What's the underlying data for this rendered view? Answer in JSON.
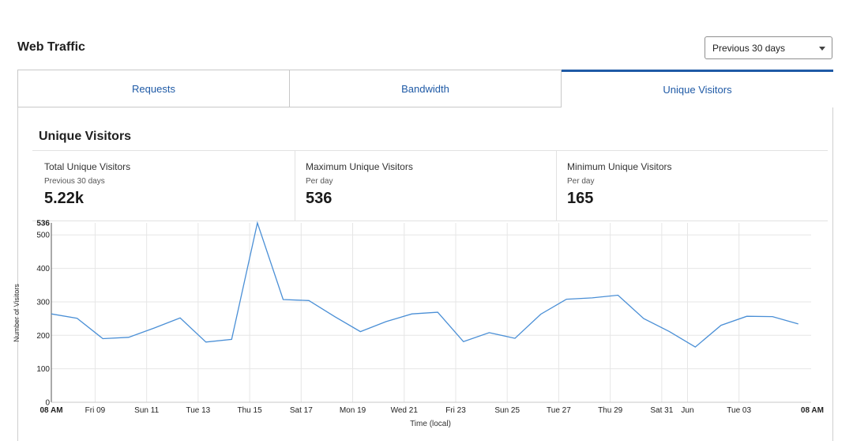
{
  "header": {
    "title": "Web Traffic",
    "range_select": "Previous 30 days"
  },
  "tabs": [
    {
      "label": "Requests",
      "active": false
    },
    {
      "label": "Bandwidth",
      "active": false
    },
    {
      "label": "Unique Visitors",
      "active": true
    }
  ],
  "section": {
    "title": "Unique Visitors",
    "stats": [
      {
        "label": "Total Unique Visitors",
        "sub": "Previous 30 days",
        "value": "5.22k"
      },
      {
        "label": "Maximum Unique Visitors",
        "sub": "Per day",
        "value": "536"
      },
      {
        "label": "Minimum Unique Visitors",
        "sub": "Per day",
        "value": "165"
      }
    ]
  },
  "colors": {
    "accent": "#1f5aa6",
    "line": "#4a8fd6",
    "grid": "#e6e6e6"
  },
  "chart_data": {
    "type": "line",
    "title": "",
    "xlabel": "Time (local)",
    "ylabel": "Number of Visitors",
    "ylim": [
      0,
      536
    ],
    "y_ticks": [
      0,
      100,
      200,
      300,
      400,
      500,
      536
    ],
    "x_ticks": [
      "08 AM",
      "Fri 09",
      "Sun 11",
      "Tue 13",
      "Thu 15",
      "Sat 17",
      "Mon 19",
      "Wed 21",
      "Fri 23",
      "Sun 25",
      "Tue 27",
      "Thu 29",
      "Sat 31",
      "Jun",
      "Tue 03",
      "08 AM"
    ],
    "x_tick_days": [
      0,
      1.7,
      3.7,
      5.7,
      7.7,
      9.7,
      11.7,
      13.7,
      15.7,
      17.7,
      19.7,
      21.7,
      23.7,
      24.7,
      26.7,
      29.5
    ],
    "x_range_days": [
      0,
      29.5
    ],
    "series": [
      {
        "name": "Unique Visitors",
        "x": [
          0,
          1,
          2,
          3,
          4,
          5,
          6,
          7,
          8,
          9,
          10,
          11,
          12,
          13,
          14,
          15,
          16,
          17,
          18,
          19,
          20,
          21,
          22,
          23,
          24,
          25,
          26,
          27,
          28,
          29
        ],
        "values": [
          264,
          251,
          190,
          194,
          222,
          252,
          180,
          188,
          536,
          307,
          304,
          256,
          211,
          241,
          264,
          269,
          181,
          208,
          191,
          263,
          308,
          312,
          320,
          250,
          211,
          165,
          230,
          257,
          256,
          234
        ]
      }
    ]
  }
}
